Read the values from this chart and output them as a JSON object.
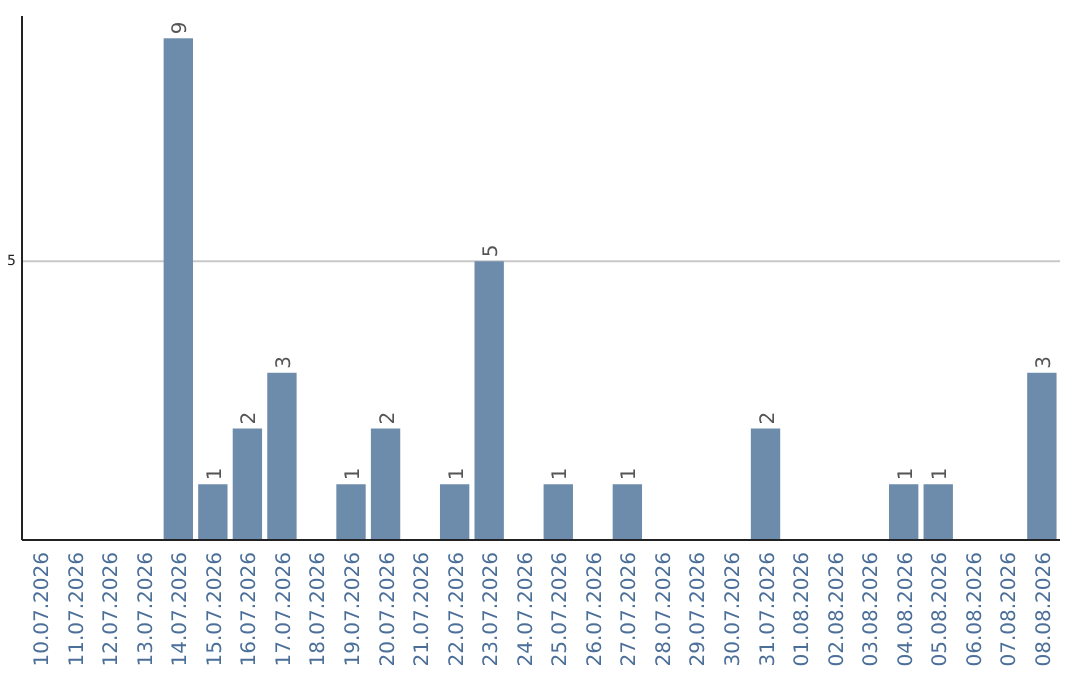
{
  "chart_data": {
    "type": "bar",
    "categories": [
      "10.07.2026",
      "11.07.2026",
      "12.07.2026",
      "13.07.2026",
      "14.07.2026",
      "15.07.2026",
      "16.07.2026",
      "17.07.2026",
      "18.07.2026",
      "19.07.2026",
      "20.07.2026",
      "21.07.2026",
      "22.07.2026",
      "23.07.2026",
      "24.07.2026",
      "25.07.2026",
      "26.07.2026",
      "27.07.2026",
      "28.07.2026",
      "29.07.2026",
      "30.07.2026",
      "31.07.2026",
      "01.08.2026",
      "02.08.2026",
      "03.08.2026",
      "04.08.2026",
      "05.08.2026",
      "06.08.2026",
      "07.08.2026",
      "08.08.2026"
    ],
    "values": [
      0,
      0,
      0,
      0,
      9,
      1,
      2,
      3,
      0,
      1,
      2,
      0,
      1,
      5,
      0,
      1,
      0,
      1,
      0,
      0,
      0,
      2,
      0,
      0,
      0,
      1,
      1,
      0,
      0,
      3
    ],
    "value_labels": [
      null,
      null,
      null,
      null,
      "9",
      "1",
      "2",
      "3",
      null,
      "1",
      "2",
      null,
      "1",
      "5",
      null,
      "1",
      null,
      "1",
      null,
      null,
      null,
      "2",
      null,
      null,
      null,
      "1",
      "1",
      null,
      null,
      "3"
    ],
    "color": "#6d8cab",
    "ylim": [
      0,
      9.4
    ],
    "yticks": [
      5
    ],
    "grid": "y"
  }
}
